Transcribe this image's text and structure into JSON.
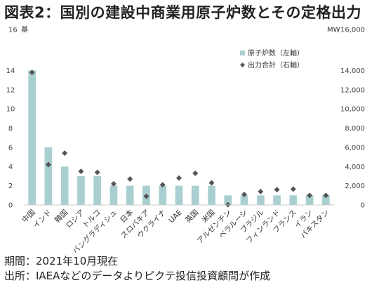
{
  "title": "図表2：国別の建設中商業用原子炉数とその定格出力",
  "footer": {
    "period": "期間：2021年10月現在",
    "source": "出所：IAEAなどのデータよりピクテ投信投資顧問が作成"
  },
  "colors": {
    "bar": "#a9cfd1",
    "marker": "#555555",
    "axis_text": "#444444"
  },
  "chart_data": {
    "type": "bar",
    "categories": [
      "中国",
      "インド",
      "韓国",
      "ロシア",
      "トルコ",
      "バングラディシュ",
      "日本",
      "スロバキア",
      "ウクライナ",
      "UAE",
      "英国",
      "米国",
      "アルゼンチン",
      "ベラルーシ",
      "ブラジル",
      "フィンランド",
      "フランス",
      "イラン",
      "パキスタン"
    ],
    "series": [
      {
        "name": "原子炉数（左軸）",
        "type": "bar",
        "axis": "left",
        "values": [
          14,
          6,
          4,
          3,
          3,
          2,
          2,
          2,
          2,
          2,
          2,
          2,
          1,
          1,
          1,
          1,
          1,
          1,
          1
        ]
      },
      {
        "name": "出力合計（右軸）",
        "type": "scatter",
        "marker": "diamond",
        "axis": "right",
        "values": [
          13800,
          4200,
          5400,
          3500,
          3400,
          2200,
          2700,
          900,
          2100,
          2800,
          3300,
          2300,
          30,
          1100,
          1400,
          1600,
          1650,
          1000,
          1000
        ]
      }
    ],
    "y_left": {
      "unit": "基",
      "ylim": [
        0,
        16
      ],
      "ticks": [
        "0",
        "2",
        "4",
        "6",
        "8",
        "10",
        "12",
        "14",
        "16"
      ]
    },
    "y_right": {
      "unit": "MW",
      "ylim": [
        0,
        16000
      ],
      "ticks": [
        "0",
        "2,000",
        "4,000",
        "6,000",
        "8,000",
        "10,000",
        "12,000",
        "14,000",
        "16,000"
      ]
    },
    "grid": false,
    "legend_position": "top-right"
  }
}
